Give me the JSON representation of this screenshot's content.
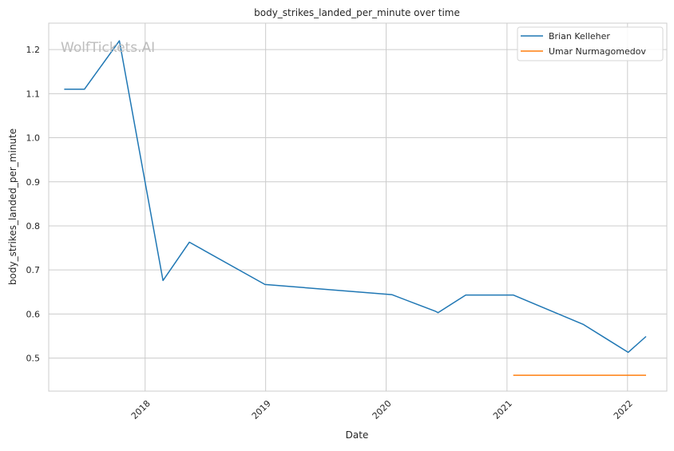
{
  "watermark": "WolfTickets.AI",
  "chart_data": {
    "type": "line",
    "title": "body_strikes_landed_per_minute over time",
    "xlabel": "Date",
    "ylabel": "body_strikes_landed_per_minute",
    "x_type": "date",
    "xlim": [
      "2017-03-15",
      "2022-04-30"
    ],
    "ylim": [
      0.425,
      1.26
    ],
    "x_ticks": [
      {
        "date": "2018-01-01",
        "label": "2018"
      },
      {
        "date": "2019-01-01",
        "label": "2019"
      },
      {
        "date": "2020-01-01",
        "label": "2020"
      },
      {
        "date": "2021-01-01",
        "label": "2021"
      },
      {
        "date": "2022-01-01",
        "label": "2022"
      }
    ],
    "y_ticks": [
      0.5,
      0.6,
      0.7,
      0.8,
      0.9,
      1.0,
      1.1,
      1.2
    ],
    "y_tick_labels": [
      "0.5",
      "0.6",
      "0.7",
      "0.8",
      "0.9",
      "1.0",
      "1.1",
      "1.2"
    ],
    "grid": true,
    "legend_position": "top-right",
    "series": [
      {
        "name": "Brian Kelleher",
        "color": "#1f77b4",
        "points": [
          {
            "x": "2017-05-01",
            "y": 1.11
          },
          {
            "x": "2017-07-01",
            "y": 1.11
          },
          {
            "x": "2017-10-15",
            "y": 1.22
          },
          {
            "x": "2018-02-24",
            "y": 0.676
          },
          {
            "x": "2018-05-15",
            "y": 0.763
          },
          {
            "x": "2018-12-30",
            "y": 0.667
          },
          {
            "x": "2020-01-18",
            "y": 0.644
          },
          {
            "x": "2020-05-30",
            "y": 0.606
          },
          {
            "x": "2020-06-06",
            "y": 0.603
          },
          {
            "x": "2020-08-29",
            "y": 0.643
          },
          {
            "x": "2021-01-20",
            "y": 0.643
          },
          {
            "x": "2021-08-21",
            "y": 0.576
          },
          {
            "x": "2022-01-03",
            "y": 0.513
          },
          {
            "x": "2022-02-26",
            "y": 0.549
          }
        ]
      },
      {
        "name": "Umar Nurmagomedov",
        "color": "#ff7f0e",
        "points": [
          {
            "x": "2021-01-20",
            "y": 0.461
          },
          {
            "x": "2022-02-26",
            "y": 0.461
          }
        ]
      }
    ]
  }
}
